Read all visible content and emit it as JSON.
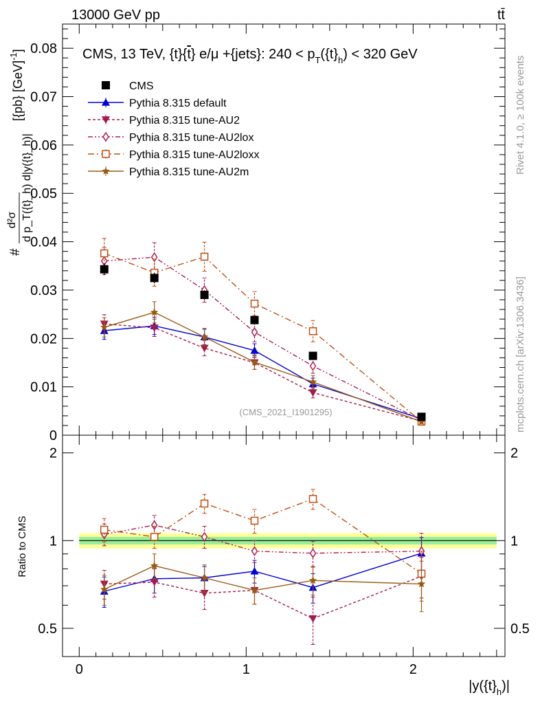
{
  "header": {
    "energy_label": "13000 GeV pp",
    "process_label": "tt̄",
    "rivet_label": "Rivet 4.1.0, ≥ 100k events",
    "site_label": "mcplots.cern.ch [arXiv:1306.3436]",
    "analysis_id": "(CMS_2021_I1901295)"
  },
  "chart_data": [
    {
      "panel": "main",
      "type": "line",
      "title": "CMS, 13 TeV, {t}{t̄} e/μ +{jets}: 240 <  p_T({t}_h) < 320 GeV",
      "title_parts": [
        "CMS, 13 TeV, {t}{",
        "t",
        "} e/μ +{jets}: 240 <  p",
        "T",
        "({t}",
        "h",
        ") < 320 GeV"
      ],
      "ylabel_parts": [
        "#",
        "d²σ",
        "d p_T({t}_h) d|y({t}_h)|",
        " [{pb} [GeV]",
        "-1",
        "]"
      ],
      "xlabel_parts": [
        "|y({t}",
        "h",
        ")|"
      ],
      "xlim": [
        -0.1,
        2.55
      ],
      "ylim": [
        0,
        0.085
      ],
      "grid": false,
      "legend_position": "top-left",
      "y_ticks": [
        0,
        0.01,
        0.02,
        0.03,
        0.04,
        0.05,
        0.06,
        0.07,
        0.08
      ],
      "y_tick_labels": [
        "0",
        "0.01",
        "0.02",
        "0.03",
        "0.04",
        "0.05",
        "0.06",
        "0.07",
        "0.08"
      ],
      "x": [
        0.15,
        0.45,
        0.75,
        1.05,
        1.4,
        2.05
      ],
      "data": {
        "name": "CMS",
        "values": [
          0.0343,
          0.0325,
          0.029,
          0.0238,
          0.0164,
          0.0038
        ],
        "errors": [
          0.0012,
          0.0011,
          0.001,
          0.0008,
          0.0007,
          0.0004
        ]
      },
      "series": [
        {
          "name": "Pythia 8.315 default",
          "color": "#0000dd",
          "marker": "triangle-up",
          "dash": "",
          "values": [
            0.0216,
            0.0226,
            0.0203,
            0.0175,
            0.0106,
            0.0034
          ],
          "errors": [
            0.0018,
            0.0018,
            0.0016,
            0.0014,
            0.0012,
            0.0004
          ]
        },
        {
          "name": "Pythia 8.315 tune-AU2",
          "color": "#a51a4a",
          "marker": "triangle-down",
          "dash": "4,3",
          "values": [
            0.023,
            0.0222,
            0.018,
            0.015,
            0.0088,
            0.0029
          ],
          "errors": [
            0.0019,
            0.0018,
            0.0016,
            0.0014,
            0.0011,
            0.0004
          ]
        },
        {
          "name": "Pythia 8.315 tune-AU2lox",
          "color": "#b01c4e",
          "marker": "diamond-open",
          "dash": "7,3,2,3,2,3",
          "values": [
            0.036,
            0.0368,
            0.03,
            0.0213,
            0.0143,
            0.0031
          ],
          "errors": [
            0.0028,
            0.003,
            0.0025,
            0.002,
            0.0015,
            0.0005
          ]
        },
        {
          "name": "Pythia 8.315 tune-AU2loxx",
          "color": "#c24d12",
          "marker": "square-open",
          "dash": "9,4,2,4",
          "values": [
            0.0376,
            0.0336,
            0.0369,
            0.0272,
            0.0215,
            0.0028
          ],
          "errors": [
            0.0031,
            0.0028,
            0.003,
            0.0025,
            0.0022,
            0.0005
          ]
        },
        {
          "name": "Pythia 8.315 tune-AU2m",
          "color": "#9a5a10",
          "marker": "star",
          "dash": "",
          "values": [
            0.0223,
            0.0254,
            0.0203,
            0.0151,
            0.011,
            0.0028
          ],
          "errors": [
            0.002,
            0.0022,
            0.0018,
            0.0015,
            0.0013,
            0.0004
          ]
        }
      ]
    },
    {
      "panel": "ratio",
      "type": "line",
      "ylabel": "Ratio to CMS",
      "xlim": [
        -0.1,
        2.55
      ],
      "ylim": [
        0.4,
        2.3
      ],
      "y_ticks": [
        0.5,
        1,
        2
      ],
      "y_tick_labels": [
        "0.5",
        "1",
        "2"
      ],
      "x_ticks": [
        0,
        1,
        2
      ],
      "x_tick_labels": [
        "0",
        "1",
        "2"
      ],
      "band_inner": [
        0.97,
        1.03
      ],
      "band_outer": [
        0.94,
        1.06
      ],
      "x": [
        0.15,
        0.45,
        0.75,
        1.05,
        1.4,
        2.05
      ],
      "series": [
        {
          "name": "Pythia 8.315 default",
          "color": "#0000dd",
          "marker": "triangle-up",
          "dash": "",
          "values": [
            0.67,
            0.74,
            0.745,
            0.785,
            0.69,
            0.905
          ],
          "errors": [
            0.08,
            0.08,
            0.07,
            0.07,
            0.08,
            0.12
          ]
        },
        {
          "name": "Pythia 8.315 tune-AU2",
          "color": "#a51a4a",
          "marker": "triangle-down",
          "dash": "4,3",
          "values": [
            0.71,
            0.72,
            0.66,
            0.675,
            0.54,
            0.755
          ],
          "errors": [
            0.08,
            0.08,
            0.08,
            0.07,
            0.1,
            0.12
          ]
        },
        {
          "name": "Pythia 8.315 tune-AU2lox",
          "color": "#b01c4e",
          "marker": "diamond-open",
          "dash": "7,3,2,3,2,3",
          "values": [
            1.05,
            1.13,
            1.03,
            0.92,
            0.905,
            0.92
          ],
          "errors": [
            0.09,
            0.09,
            0.09,
            0.08,
            0.09,
            0.14
          ]
        },
        {
          "name": "Pythia 8.315 tune-AU2loxx",
          "color": "#c24d12",
          "marker": "square-open",
          "dash": "9,4,2,4",
          "values": [
            1.09,
            1.03,
            1.34,
            1.17,
            1.39,
            0.77
          ],
          "errors": [
            0.1,
            0.09,
            0.1,
            0.11,
            0.11,
            0.15
          ]
        },
        {
          "name": "Pythia 8.315 tune-AU2m",
          "color": "#9a5a10",
          "marker": "star",
          "dash": "",
          "values": [
            0.68,
            0.82,
            0.745,
            0.675,
            0.73,
            0.71
          ],
          "errors": [
            0.08,
            0.08,
            0.08,
            0.07,
            0.08,
            0.14
          ]
        }
      ]
    }
  ]
}
